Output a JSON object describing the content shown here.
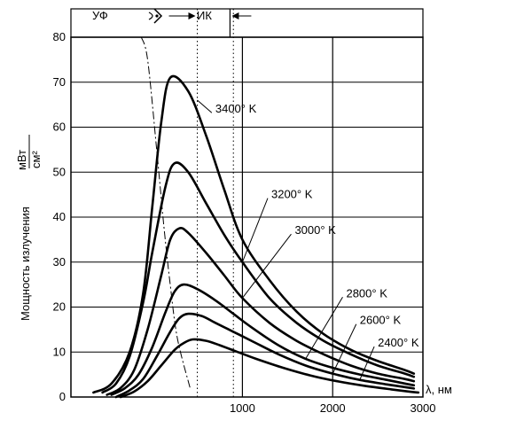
{
  "chart_data": {
    "type": "line",
    "title": "",
    "xlabel": "λ, нм",
    "ylabel": "Мощность излучения",
    "yunit_num": "мВт",
    "yunit_den": "см²",
    "xlim": [
      -900,
      3000
    ],
    "ylim": [
      0,
      80
    ],
    "xticks": [
      1000,
      2000,
      3000
    ],
    "yticks": [
      0,
      10,
      20,
      30,
      40,
      50,
      60,
      70,
      80
    ],
    "grid": true,
    "regions": {
      "uv": "УФ",
      "ir": "ИК"
    },
    "visible_band": [
      500,
      900
    ],
    "series": [
      {
        "name": "3400° K",
        "x": [
          -650,
          -450,
          -250,
          -100,
          0,
          100,
          200,
          400,
          600,
          800,
          1000,
          1300,
          1600,
          1900,
          2200,
          2500,
          2800,
          2900
        ],
        "y": [
          1,
          3,
          10,
          23,
          42,
          61,
          71,
          68,
          58,
          46,
          35,
          26,
          19,
          14,
          10.5,
          8,
          6,
          5.2
        ]
      },
      {
        "name": "3200° K",
        "x": [
          -550,
          -400,
          -250,
          -100,
          0,
          150,
          250,
          400,
          600,
          800,
          1000,
          1300,
          1600,
          1900,
          2200,
          2500,
          2800,
          2900
        ],
        "y": [
          1,
          3,
          9,
          21,
          32,
          47,
          52,
          50,
          43,
          36,
          30,
          22,
          16.5,
          12.5,
          9.5,
          7,
          5.2,
          4.5
        ]
      },
      {
        "name": "3000° K",
        "x": [
          -500,
          -350,
          -200,
          -50,
          100,
          200,
          300,
          400,
          600,
          800,
          1000,
          1300,
          1600,
          1900,
          2200,
          2500,
          2800,
          2900
        ],
        "y": [
          0.5,
          2,
          6,
          15,
          27,
          35,
          37.5,
          36.5,
          32,
          27,
          22,
          16.5,
          12.5,
          9.5,
          7,
          5.2,
          4,
          3.5
        ]
      },
      {
        "name": "2800° K",
        "x": [
          -450,
          -300,
          -150,
          0,
          150,
          250,
          350,
          500,
          700,
          900,
          1100,
          1400,
          1700,
          2000,
          2300,
          2600,
          2800,
          2900
        ],
        "y": [
          0.5,
          2,
          5,
          11,
          19,
          23.5,
          25,
          24,
          21.5,
          18.5,
          15.5,
          11.5,
          8.5,
          6.5,
          5,
          3.8,
          3,
          2.6
        ]
      },
      {
        "name": "2600° K",
        "x": [
          -400,
          -250,
          -100,
          50,
          200,
          300,
          400,
          550,
          700,
          900,
          1100,
          1400,
          1700,
          2000,
          2300,
          2600,
          2800,
          2900
        ],
        "y": [
          0,
          1.5,
          4,
          9,
          14.5,
          17.5,
          18.5,
          18,
          16.5,
          14.5,
          12.5,
          9.5,
          7,
          5.2,
          3.8,
          2.8,
          2.2,
          1.9
        ]
      },
      {
        "name": "2400° K",
        "x": [
          -350,
          -200,
          -50,
          100,
          250,
          350,
          450,
          600,
          750,
          950,
          1150,
          1450,
          1750,
          2050,
          2350,
          2650,
          2850,
          2950
        ],
        "y": [
          0,
          1.2,
          3.5,
          7,
          10.5,
          12,
          12.8,
          12.5,
          11.5,
          10,
          8.5,
          6.5,
          4.8,
          3.5,
          2.5,
          1.7,
          1.2,
          1
        ]
      }
    ],
    "peak_locus": {
      "x": [
        -120,
        -50,
        50,
        130,
        200,
        280,
        420
      ],
      "y": [
        80,
        75,
        55,
        38,
        25,
        13,
        2
      ]
    }
  }
}
